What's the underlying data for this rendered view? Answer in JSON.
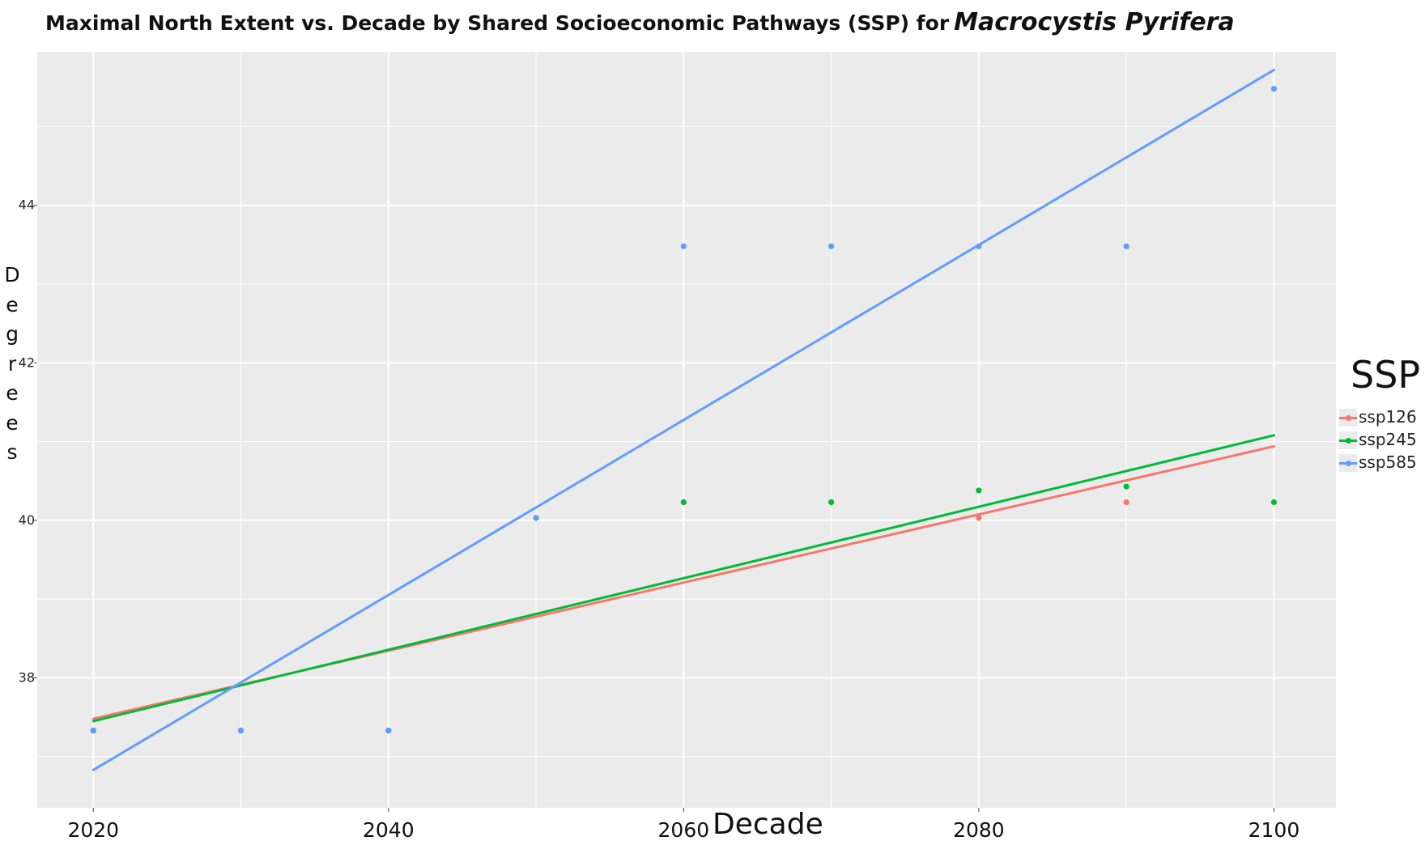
{
  "chart_data": {
    "type": "scatter",
    "title": "Maximal North Extent vs. Decade by Shared Socioeconomic Pathways (SSP) for",
    "title_species": "Macrocystis Pyrifera",
    "xlabel": "Decade",
    "ylabel": "Degrees",
    "xlim": [
      2016.2,
      2104.2
    ],
    "ylim": [
      36.35,
      45.95
    ],
    "x_ticks": [
      2020,
      2040,
      2060,
      2080,
      2100
    ],
    "y_ticks": [
      38,
      40,
      42,
      44
    ],
    "grid": true,
    "legend": {
      "title": "SSP",
      "position": "right"
    },
    "series": [
      {
        "name": "ssp126",
        "color": "#F8766D",
        "points": [
          [
            2020,
            37.33
          ],
          [
            2030,
            37.33
          ],
          [
            2040,
            37.33
          ],
          [
            2050,
            40.03
          ],
          [
            2060,
            40.23
          ],
          [
            2070,
            40.23
          ],
          [
            2080,
            40.03
          ],
          [
            2090,
            40.23
          ],
          [
            2100,
            40.23
          ]
        ],
        "trend": [
          [
            2020,
            37.48
          ],
          [
            2100,
            40.94
          ]
        ]
      },
      {
        "name": "ssp245",
        "color": "#00BA38",
        "points": [
          [
            2020,
            37.33
          ],
          [
            2030,
            37.33
          ],
          [
            2040,
            37.33
          ],
          [
            2050,
            40.03
          ],
          [
            2060,
            40.23
          ],
          [
            2070,
            40.23
          ],
          [
            2080,
            40.38
          ],
          [
            2090,
            40.43
          ],
          [
            2100,
            40.23
          ]
        ],
        "trend": [
          [
            2020,
            37.45
          ],
          [
            2100,
            41.08
          ]
        ]
      },
      {
        "name": "ssp585",
        "color": "#619CFF",
        "points": [
          [
            2020,
            37.33
          ],
          [
            2030,
            37.33
          ],
          [
            2040,
            37.33
          ],
          [
            2050,
            40.03
          ],
          [
            2060,
            43.48
          ],
          [
            2070,
            43.48
          ],
          [
            2080,
            43.48
          ],
          [
            2090,
            43.48
          ],
          [
            2100,
            45.48
          ]
        ],
        "trend": [
          [
            2020,
            36.83
          ],
          [
            2100,
            45.72
          ]
        ]
      }
    ]
  }
}
